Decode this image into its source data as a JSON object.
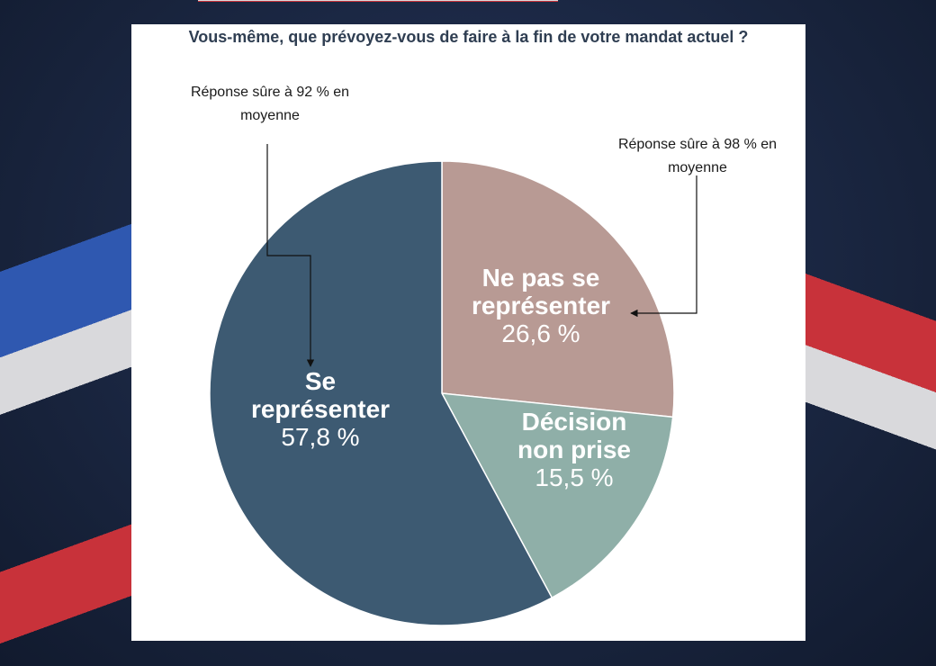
{
  "chart_data": {
    "type": "pie",
    "title": "Vous-même, que prévoyez-vous de faire à la fin de votre mandat actuel ?",
    "start": "12 o'clock, clockwise",
    "slices": [
      {
        "label_line1": "Ne pas se",
        "label_line2": "représenter",
        "value": 26.6,
        "value_label": "26,6 %",
        "color": "#b89a94"
      },
      {
        "label_line1": "Décision",
        "label_line2": "non prise",
        "value": 15.5,
        "value_label": "15,5 %",
        "color": "#8fafa8"
      },
      {
        "label_line1": "Se",
        "label_line2": "représenter",
        "value": 57.8,
        "value_label": "57,8 %",
        "color": "#3d5a72"
      }
    ],
    "annotations": [
      {
        "line1": "Réponse sûre à 92 % en",
        "line2": "moyenne",
        "points_to": "Se représenter"
      },
      {
        "line1": "Réponse sûre à 98 % en",
        "line2": "moyenne",
        "points_to": "Ne pas se représenter"
      }
    ]
  }
}
